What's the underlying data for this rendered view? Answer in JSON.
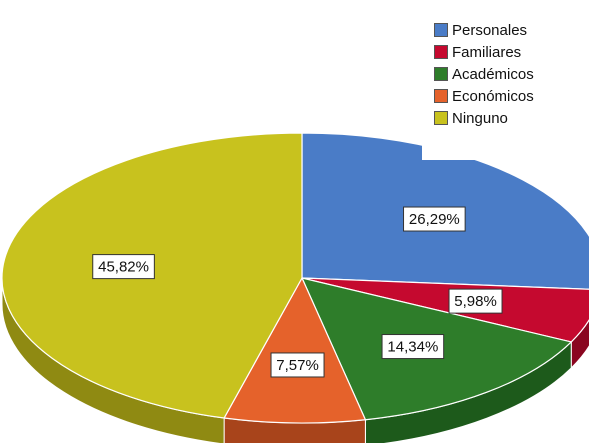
{
  "chart_data": {
    "type": "pie",
    "title": "",
    "legend_position": "top-right",
    "three_d": true,
    "slices": [
      {
        "name": "Personales",
        "value": 26.29,
        "label": "26,29%",
        "color": "#4A7CC7",
        "side_color": "#31598f"
      },
      {
        "name": "Familiares",
        "value": 5.98,
        "label": "5,98%",
        "color": "#C5092F",
        "side_color": "#8a0620"
      },
      {
        "name": "Académicos",
        "value": 14.34,
        "label": "14,34%",
        "color": "#2E7D2A",
        "side_color": "#1d5a1b"
      },
      {
        "name": "Económicos",
        "value": 7.57,
        "label": "7,57%",
        "color": "#E5622B",
        "side_color": "#a8441b"
      },
      {
        "name": "Ninguno",
        "value": 45.82,
        "label": "45,82%",
        "color": "#C8C21E",
        "side_color": "#8f8a12"
      }
    ]
  }
}
